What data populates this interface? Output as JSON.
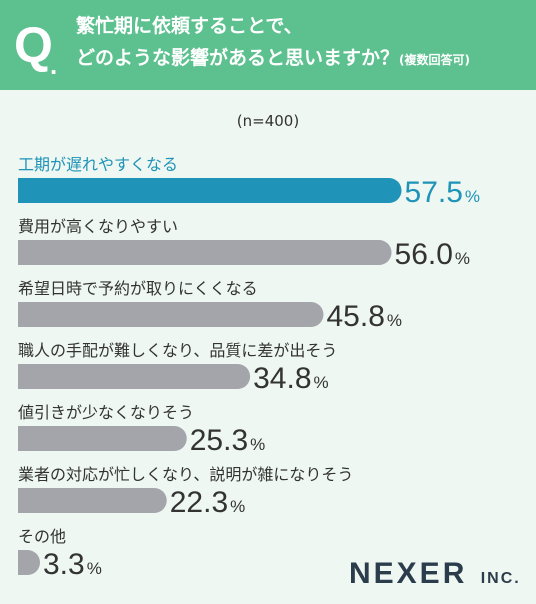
{
  "header": {
    "q_letter": "Q",
    "q_dot": ".",
    "line1": "繁忙期に依頼することで、",
    "line2": "どのような影響があると思いますか？",
    "note": "(複数回答可)"
  },
  "sample_size": "(n=400)",
  "colors": {
    "header_bg": "#5cc08f",
    "highlight": "#1f93b8",
    "bar": "#a4a5aa",
    "text": "#333333",
    "background": "#eef7f1"
  },
  "brand": {
    "name": "NEXER",
    "suffix": "INC."
  },
  "chart_data": {
    "type": "bar",
    "orientation": "horizontal",
    "unit": "%",
    "categories": [
      "工期が遅れやすくなる",
      "費用が高くなりやすい",
      "希望日時で予約が取りにくくなる",
      "職人の手配が難しくなり、品質に差が出そう",
      "値引きが少なくなりそう",
      "業者の対応が忙しくなり、説明が雑になりそう",
      "その他"
    ],
    "values": [
      57.5,
      56.0,
      45.8,
      34.8,
      25.3,
      22.3,
      3.3
    ],
    "value_labels": [
      "57.5",
      "56.0",
      "45.8",
      "34.8",
      "25.3",
      "22.3",
      "3.3"
    ],
    "highlight_index": 0,
    "xlim": [
      0,
      100
    ]
  }
}
